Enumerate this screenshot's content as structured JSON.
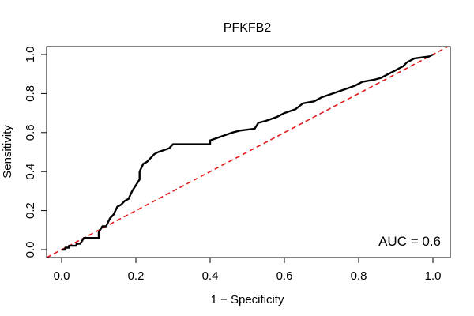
{
  "chart_data": {
    "type": "line",
    "title": "PFKFB2",
    "xlabel": "1 − Specificity",
    "ylabel": "Sensitivity",
    "xlim": [
      0,
      1
    ],
    "ylim": [
      0,
      1
    ],
    "x_ticks": [
      "0.0",
      "0.2",
      "0.4",
      "0.6",
      "0.8",
      "1.0"
    ],
    "y_ticks": [
      "0.0",
      "0.2",
      "0.4",
      "0.6",
      "0.8",
      "1.0"
    ],
    "annotation": "AUC = 0.6",
    "series": [
      {
        "name": "ROC curve",
        "color": "#000000",
        "style": "solid",
        "points": [
          [
            0.0,
            0.0
          ],
          [
            0.01,
            0.0
          ],
          [
            0.01,
            0.01
          ],
          [
            0.02,
            0.01
          ],
          [
            0.02,
            0.02
          ],
          [
            0.04,
            0.02
          ],
          [
            0.04,
            0.03
          ],
          [
            0.05,
            0.03
          ],
          [
            0.06,
            0.06
          ],
          [
            0.1,
            0.06
          ],
          [
            0.1,
            0.09
          ],
          [
            0.11,
            0.12
          ],
          [
            0.12,
            0.12
          ],
          [
            0.13,
            0.16
          ],
          [
            0.14,
            0.18
          ],
          [
            0.15,
            0.22
          ],
          [
            0.16,
            0.23
          ],
          [
            0.17,
            0.25
          ],
          [
            0.18,
            0.26
          ],
          [
            0.19,
            0.3
          ],
          [
            0.2,
            0.33
          ],
          [
            0.21,
            0.36
          ],
          [
            0.21,
            0.4
          ],
          [
            0.22,
            0.44
          ],
          [
            0.23,
            0.45
          ],
          [
            0.24,
            0.47
          ],
          [
            0.25,
            0.49
          ],
          [
            0.26,
            0.5
          ],
          [
            0.29,
            0.52
          ],
          [
            0.3,
            0.54
          ],
          [
            0.4,
            0.54
          ],
          [
            0.4,
            0.56
          ],
          [
            0.43,
            0.58
          ],
          [
            0.46,
            0.6
          ],
          [
            0.48,
            0.61
          ],
          [
            0.52,
            0.62
          ],
          [
            0.53,
            0.65
          ],
          [
            0.55,
            0.66
          ],
          [
            0.58,
            0.68
          ],
          [
            0.6,
            0.7
          ],
          [
            0.63,
            0.72
          ],
          [
            0.65,
            0.75
          ],
          [
            0.68,
            0.76
          ],
          [
            0.7,
            0.78
          ],
          [
            0.73,
            0.8
          ],
          [
            0.76,
            0.82
          ],
          [
            0.79,
            0.84
          ],
          [
            0.81,
            0.86
          ],
          [
            0.84,
            0.87
          ],
          [
            0.86,
            0.88
          ],
          [
            0.88,
            0.9
          ],
          [
            0.9,
            0.92
          ],
          [
            0.92,
            0.94
          ],
          [
            0.93,
            0.96
          ],
          [
            0.95,
            0.98
          ],
          [
            0.99,
            0.99
          ],
          [
            1.0,
            1.0
          ]
        ]
      },
      {
        "name": "Reference line",
        "color": "#e31a1c",
        "style": "dashed",
        "points": [
          [
            -0.04,
            -0.04
          ],
          [
            1.04,
            1.04
          ]
        ]
      }
    ]
  }
}
